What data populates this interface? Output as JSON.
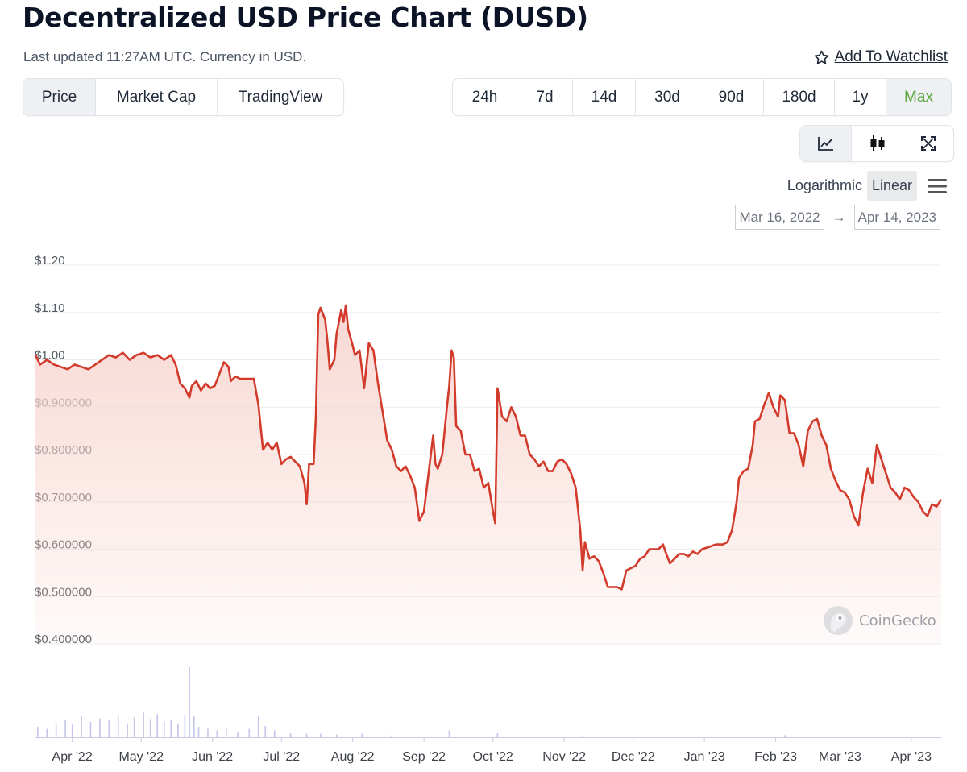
{
  "page": {
    "title": "Decentralized USD Price Chart (DUSD)",
    "subtitle": "Last updated 11:27AM UTC. Currency in USD.",
    "watchlist_label": "Add To Watchlist"
  },
  "view_tabs": [
    {
      "label": "Price",
      "active": true
    },
    {
      "label": "Market Cap",
      "active": false
    },
    {
      "label": "TradingView",
      "active": false
    }
  ],
  "range_tabs": [
    {
      "label": "24h",
      "active": false
    },
    {
      "label": "7d",
      "active": false
    },
    {
      "label": "14d",
      "active": false
    },
    {
      "label": "30d",
      "active": false
    },
    {
      "label": "90d",
      "active": false
    },
    {
      "label": "180d",
      "active": false
    },
    {
      "label": "1y",
      "active": false
    },
    {
      "label": "Max",
      "active": true
    }
  ],
  "chart_tools": [
    "line-chart-icon",
    "candlestick-icon",
    "fullscreen-icon"
  ],
  "scale_options": {
    "log": "Logarithmic",
    "linear": "Linear",
    "selected": "Linear"
  },
  "date_range": {
    "from": "Mar 16, 2022",
    "to": "Apr 14, 2023"
  },
  "watermark": "CoinGecko",
  "colors": {
    "line": "#d23b2b",
    "fill": "#f8d6d0",
    "active_green": "#5aa63e",
    "volume": "#c3c6ea"
  },
  "chart_data": {
    "type": "area",
    "series": [
      {
        "name": "Price",
        "unit": "USD"
      }
    ],
    "x_start": "2022-03-16",
    "x_end": "2023-04-14",
    "x_ticks": [
      {
        "label": "Apr '22",
        "date": "2022-04-01"
      },
      {
        "label": "May '22",
        "date": "2022-05-01"
      },
      {
        "label": "Jun '22",
        "date": "2022-06-01"
      },
      {
        "label": "Jul '22",
        "date": "2022-07-01"
      },
      {
        "label": "Aug '22",
        "date": "2022-08-01"
      },
      {
        "label": "Sep '22",
        "date": "2022-09-01"
      },
      {
        "label": "Oct '22",
        "date": "2022-10-01"
      },
      {
        "label": "Nov '22",
        "date": "2022-11-01"
      },
      {
        "label": "Dec '22",
        "date": "2022-12-01"
      },
      {
        "label": "Jan '23",
        "date": "2023-01-01"
      },
      {
        "label": "Feb '23",
        "date": "2023-02-01"
      },
      {
        "label": "Mar '23",
        "date": "2023-03-01"
      },
      {
        "label": "Apr '23",
        "date": "2023-04-01"
      }
    ],
    "y_ticks": [
      {
        "label": "$1.20",
        "value": 1.2
      },
      {
        "label": "$1.10",
        "value": 1.1
      },
      {
        "label": "$1.00",
        "value": 1.0
      },
      {
        "label": "$0.900000",
        "value": 0.9
      },
      {
        "label": "$0.800000",
        "value": 0.8
      },
      {
        "label": "$0.700000",
        "value": 0.7
      },
      {
        "label": "$0.600000",
        "value": 0.6
      },
      {
        "label": "$0.500000",
        "value": 0.5
      },
      {
        "label": "$0.400000",
        "value": 0.4
      }
    ],
    "ylim": [
      0.4,
      1.2
    ],
    "grid": true,
    "scale": "linear",
    "price": [
      [
        "2022-03-16",
        1.01
      ],
      [
        "2022-03-18",
        0.99
      ],
      [
        "2022-03-21",
        1.0
      ],
      [
        "2022-03-24",
        0.99
      ],
      [
        "2022-03-27",
        0.985
      ],
      [
        "2022-03-30",
        0.98
      ],
      [
        "2022-04-02",
        0.99
      ],
      [
        "2022-04-05",
        0.985
      ],
      [
        "2022-04-08",
        0.98
      ],
      [
        "2022-04-11",
        0.99
      ],
      [
        "2022-04-14",
        1.0
      ],
      [
        "2022-04-17",
        1.01
      ],
      [
        "2022-04-20",
        1.005
      ],
      [
        "2022-04-23",
        1.015
      ],
      [
        "2022-04-26",
        1.0
      ],
      [
        "2022-04-29",
        1.01
      ],
      [
        "2022-05-02",
        1.015
      ],
      [
        "2022-05-05",
        1.005
      ],
      [
        "2022-05-08",
        1.01
      ],
      [
        "2022-05-11",
        1.0
      ],
      [
        "2022-05-14",
        1.01
      ],
      [
        "2022-05-16",
        0.99
      ],
      [
        "2022-05-18",
        0.95
      ],
      [
        "2022-05-20",
        0.94
      ],
      [
        "2022-05-22",
        0.92
      ],
      [
        "2022-05-23",
        0.945
      ],
      [
        "2022-05-25",
        0.955
      ],
      [
        "2022-05-27",
        0.935
      ],
      [
        "2022-05-29",
        0.95
      ],
      [
        "2022-05-31",
        0.94
      ],
      [
        "2022-06-02",
        0.945
      ],
      [
        "2022-06-04",
        0.97
      ],
      [
        "2022-06-06",
        0.995
      ],
      [
        "2022-06-08",
        0.985
      ],
      [
        "2022-06-09",
        0.955
      ],
      [
        "2022-06-11",
        0.965
      ],
      [
        "2022-06-13",
        0.96
      ],
      [
        "2022-06-16",
        0.96
      ],
      [
        "2022-06-19",
        0.96
      ],
      [
        "2022-06-21",
        0.905
      ],
      [
        "2022-06-23",
        0.81
      ],
      [
        "2022-06-25",
        0.825
      ],
      [
        "2022-06-27",
        0.81
      ],
      [
        "2022-06-29",
        0.825
      ],
      [
        "2022-07-01",
        0.78
      ],
      [
        "2022-07-03",
        0.79
      ],
      [
        "2022-07-05",
        0.795
      ],
      [
        "2022-07-07",
        0.785
      ],
      [
        "2022-07-09",
        0.775
      ],
      [
        "2022-07-11",
        0.74
      ],
      [
        "2022-07-12",
        0.695
      ],
      [
        "2022-07-13",
        0.78
      ],
      [
        "2022-07-15",
        0.78
      ],
      [
        "2022-07-16",
        0.88
      ],
      [
        "2022-07-17",
        1.095
      ],
      [
        "2022-07-18",
        1.11
      ],
      [
        "2022-07-20",
        1.085
      ],
      [
        "2022-07-21",
        1.04
      ],
      [
        "2022-07-22",
        0.98
      ],
      [
        "2022-07-24",
        1.0
      ],
      [
        "2022-07-25",
        1.055
      ],
      [
        "2022-07-26",
        1.08
      ],
      [
        "2022-07-27",
        1.105
      ],
      [
        "2022-07-28",
        1.08
      ],
      [
        "2022-07-29",
        1.115
      ],
      [
        "2022-07-30",
        1.065
      ],
      [
        "2022-08-01",
        1.03
      ],
      [
        "2022-08-02",
        1.01
      ],
      [
        "2022-08-04",
        1.02
      ],
      [
        "2022-08-06",
        0.94
      ],
      [
        "2022-08-08",
        1.035
      ],
      [
        "2022-08-10",
        1.02
      ],
      [
        "2022-08-12",
        0.95
      ],
      [
        "2022-08-14",
        0.89
      ],
      [
        "2022-08-16",
        0.83
      ],
      [
        "2022-08-18",
        0.81
      ],
      [
        "2022-08-20",
        0.775
      ],
      [
        "2022-08-22",
        0.765
      ],
      [
        "2022-08-24",
        0.775
      ],
      [
        "2022-08-26",
        0.755
      ],
      [
        "2022-08-28",
        0.73
      ],
      [
        "2022-08-30",
        0.66
      ],
      [
        "2022-09-01",
        0.68
      ],
      [
        "2022-09-03",
        0.76
      ],
      [
        "2022-09-05",
        0.84
      ],
      [
        "2022-09-06",
        0.78
      ],
      [
        "2022-09-07",
        0.77
      ],
      [
        "2022-09-09",
        0.8
      ],
      [
        "2022-09-11",
        0.9
      ],
      [
        "2022-09-12",
        0.945
      ],
      [
        "2022-09-13",
        1.02
      ],
      [
        "2022-09-14",
        1.005
      ],
      [
        "2022-09-15",
        0.86
      ],
      [
        "2022-09-17",
        0.85
      ],
      [
        "2022-09-19",
        0.8
      ],
      [
        "2022-09-21",
        0.8
      ],
      [
        "2022-09-23",
        0.765
      ],
      [
        "2022-09-25",
        0.77
      ],
      [
        "2022-09-27",
        0.73
      ],
      [
        "2022-09-29",
        0.74
      ],
      [
        "2022-10-01",
        0.68
      ],
      [
        "2022-10-02",
        0.655
      ],
      [
        "2022-10-03",
        0.94
      ],
      [
        "2022-10-05",
        0.88
      ],
      [
        "2022-10-07",
        0.87
      ],
      [
        "2022-10-09",
        0.9
      ],
      [
        "2022-10-11",
        0.88
      ],
      [
        "2022-10-13",
        0.84
      ],
      [
        "2022-10-15",
        0.84
      ],
      [
        "2022-10-17",
        0.8
      ],
      [
        "2022-10-19",
        0.79
      ],
      [
        "2022-10-21",
        0.775
      ],
      [
        "2022-10-23",
        0.785
      ],
      [
        "2022-10-25",
        0.765
      ],
      [
        "2022-10-27",
        0.765
      ],
      [
        "2022-10-29",
        0.785
      ],
      [
        "2022-10-31",
        0.79
      ],
      [
        "2022-11-02",
        0.78
      ],
      [
        "2022-11-04",
        0.76
      ],
      [
        "2022-11-06",
        0.73
      ],
      [
        "2022-11-08",
        0.64
      ],
      [
        "2022-11-09",
        0.555
      ],
      [
        "2022-11-10",
        0.615
      ],
      [
        "2022-11-12",
        0.58
      ],
      [
        "2022-11-14",
        0.585
      ],
      [
        "2022-11-16",
        0.575
      ],
      [
        "2022-11-18",
        0.55
      ],
      [
        "2022-11-20",
        0.52
      ],
      [
        "2022-11-22",
        0.52
      ],
      [
        "2022-11-24",
        0.52
      ],
      [
        "2022-11-26",
        0.515
      ],
      [
        "2022-11-28",
        0.555
      ],
      [
        "2022-11-30",
        0.56
      ],
      [
        "2022-12-02",
        0.565
      ],
      [
        "2022-12-04",
        0.58
      ],
      [
        "2022-12-06",
        0.585
      ],
      [
        "2022-12-08",
        0.6
      ],
      [
        "2022-12-10",
        0.6
      ],
      [
        "2022-12-12",
        0.6
      ],
      [
        "2022-12-14",
        0.61
      ],
      [
        "2022-12-15",
        0.595
      ],
      [
        "2022-12-17",
        0.57
      ],
      [
        "2022-12-19",
        0.58
      ],
      [
        "2022-12-21",
        0.59
      ],
      [
        "2022-12-23",
        0.59
      ],
      [
        "2022-12-25",
        0.585
      ],
      [
        "2022-12-27",
        0.595
      ],
      [
        "2022-12-29",
        0.59
      ],
      [
        "2022-12-31",
        0.6
      ],
      [
        "2023-01-03",
        0.605
      ],
      [
        "2023-01-06",
        0.61
      ],
      [
        "2023-01-09",
        0.61
      ],
      [
        "2023-01-11",
        0.615
      ],
      [
        "2023-01-13",
        0.64
      ],
      [
        "2023-01-15",
        0.7
      ],
      [
        "2023-01-16",
        0.75
      ],
      [
        "2023-01-18",
        0.765
      ],
      [
        "2023-01-20",
        0.77
      ],
      [
        "2023-01-22",
        0.82
      ],
      [
        "2023-01-23",
        0.87
      ],
      [
        "2023-01-25",
        0.875
      ],
      [
        "2023-01-27",
        0.905
      ],
      [
        "2023-01-29",
        0.93
      ],
      [
        "2023-01-31",
        0.9
      ],
      [
        "2023-02-02",
        0.88
      ],
      [
        "2023-02-03",
        0.925
      ],
      [
        "2023-02-05",
        0.915
      ],
      [
        "2023-02-07",
        0.845
      ],
      [
        "2023-02-09",
        0.845
      ],
      [
        "2023-02-11",
        0.82
      ],
      [
        "2023-02-13",
        0.775
      ],
      [
        "2023-02-15",
        0.85
      ],
      [
        "2023-02-17",
        0.87
      ],
      [
        "2023-02-19",
        0.875
      ],
      [
        "2023-02-21",
        0.84
      ],
      [
        "2023-02-23",
        0.82
      ],
      [
        "2023-02-25",
        0.77
      ],
      [
        "2023-02-27",
        0.745
      ],
      [
        "2023-03-01",
        0.725
      ],
      [
        "2023-03-03",
        0.72
      ],
      [
        "2023-03-05",
        0.705
      ],
      [
        "2023-03-07",
        0.67
      ],
      [
        "2023-03-09",
        0.65
      ],
      [
        "2023-03-11",
        0.72
      ],
      [
        "2023-03-13",
        0.77
      ],
      [
        "2023-03-15",
        0.74
      ],
      [
        "2023-03-17",
        0.82
      ],
      [
        "2023-03-19",
        0.79
      ],
      [
        "2023-03-21",
        0.76
      ],
      [
        "2023-03-23",
        0.73
      ],
      [
        "2023-03-25",
        0.72
      ],
      [
        "2023-03-27",
        0.705
      ],
      [
        "2023-03-29",
        0.73
      ],
      [
        "2023-03-31",
        0.725
      ],
      [
        "2023-04-02",
        0.71
      ],
      [
        "2023-04-04",
        0.7
      ],
      [
        "2023-04-06",
        0.68
      ],
      [
        "2023-04-08",
        0.67
      ],
      [
        "2023-04-10",
        0.695
      ],
      [
        "2023-04-12",
        0.69
      ],
      [
        "2023-04-14",
        0.705
      ]
    ],
    "volume": {
      "note": "relative volume bars (max = 1.0), values estimated",
      "values": [
        [
          "2022-03-17",
          0.15
        ],
        [
          "2022-03-21",
          0.12
        ],
        [
          "2022-03-25",
          0.2
        ],
        [
          "2022-03-29",
          0.25
        ],
        [
          "2022-04-01",
          0.18
        ],
        [
          "2022-04-05",
          0.3
        ],
        [
          "2022-04-09",
          0.22
        ],
        [
          "2022-04-13",
          0.27
        ],
        [
          "2022-04-17",
          0.24
        ],
        [
          "2022-04-21",
          0.3
        ],
        [
          "2022-04-25",
          0.2
        ],
        [
          "2022-04-28",
          0.28
        ],
        [
          "2022-05-02",
          0.35
        ],
        [
          "2022-05-05",
          0.26
        ],
        [
          "2022-05-08",
          0.33
        ],
        [
          "2022-05-11",
          0.22
        ],
        [
          "2022-05-14",
          0.25
        ],
        [
          "2022-05-17",
          0.2
        ],
        [
          "2022-05-20",
          0.32
        ],
        [
          "2022-05-22",
          1.0
        ],
        [
          "2022-05-24",
          0.3
        ],
        [
          "2022-05-26",
          0.15
        ],
        [
          "2022-05-30",
          0.12
        ],
        [
          "2022-06-03",
          0.1
        ],
        [
          "2022-06-07",
          0.14
        ],
        [
          "2022-06-12",
          0.08
        ],
        [
          "2022-06-17",
          0.12
        ],
        [
          "2022-06-21",
          0.3
        ],
        [
          "2022-06-24",
          0.16
        ],
        [
          "2022-06-28",
          0.1
        ],
        [
          "2022-07-05",
          0.06
        ],
        [
          "2022-07-12",
          0.05
        ],
        [
          "2022-07-18",
          0.05
        ],
        [
          "2022-07-25",
          0.04
        ],
        [
          "2022-08-05",
          0.05
        ],
        [
          "2022-08-18",
          0.03
        ],
        [
          "2022-09-12",
          0.1
        ],
        [
          "2022-10-03",
          0.06
        ],
        [
          "2022-11-09",
          0.02
        ],
        [
          "2023-02-05",
          0.03
        ]
      ]
    }
  }
}
